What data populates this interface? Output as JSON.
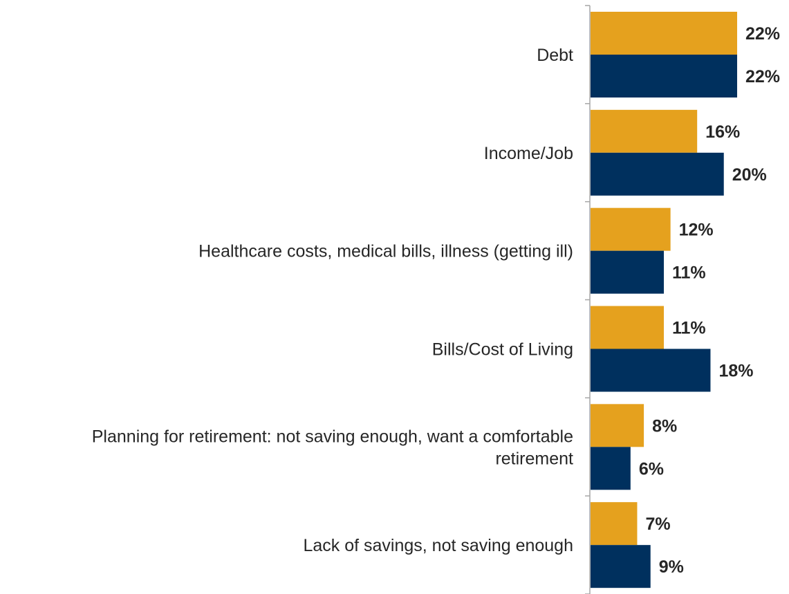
{
  "chart_data": {
    "type": "bar",
    "orientation": "horizontal",
    "title": "",
    "xlabel": "",
    "ylabel": "",
    "xlim": [
      0,
      22
    ],
    "grid": false,
    "legend": "none",
    "value_suffix": "%",
    "categories": [
      [
        "Debt"
      ],
      [
        "Income/Job"
      ],
      [
        "Healthcare costs, medical bills, illness (getting ill)"
      ],
      [
        "Bills/Cost of Living"
      ],
      [
        "Planning for retirement: not saving enough, want a comfortable",
        "retirement"
      ],
      [
        "Lack of savings, not saving enough"
      ]
    ],
    "series": [
      {
        "color": "#E5A11E",
        "values": [
          22,
          16,
          12,
          11,
          8,
          7
        ]
      },
      {
        "color": "#00305E",
        "values": [
          22,
          20,
          11,
          18,
          6,
          9
        ]
      }
    ],
    "axis_color": "#A6A6A6",
    "text_color": "#262626"
  }
}
